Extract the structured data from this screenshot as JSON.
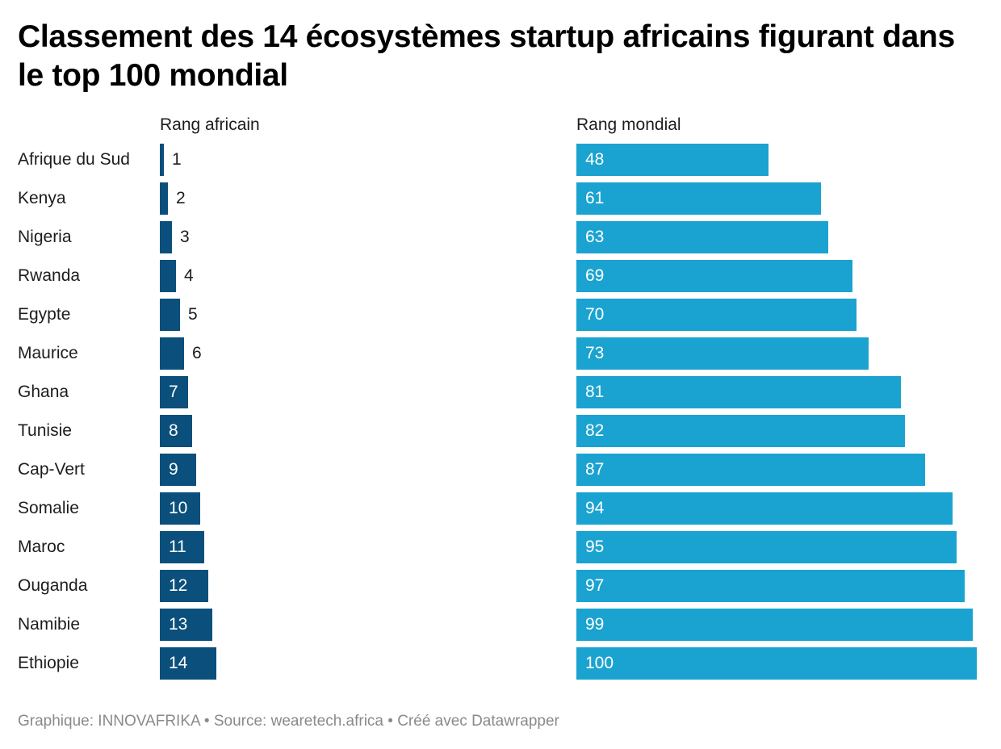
{
  "title": "Classement des 14 écosystèmes startup africains figurant dans le top 100 mondial",
  "columns": {
    "african": "Rang africain",
    "world": "Rang mondial"
  },
  "footer": {
    "text": "Graphique: INNOVAFRIKA • Source: wearetech.africa • Créé avec Datawrapper"
  },
  "colors": {
    "african_bar": "#0b4f7c",
    "world_bar": "#1aa3d0"
  },
  "chart_data": {
    "type": "bar",
    "orientation": "horizontal",
    "title": "Classement des 14 écosystèmes startup africains figurant dans le top 100 mondial",
    "categories": [
      "Afrique du Sud",
      "Kenya",
      "Nigeria",
      "Rwanda",
      "Egypte",
      "Maurice",
      "Ghana",
      "Tunisie",
      "Cap-Vert",
      "Somalie",
      "Maroc",
      "Ouganda",
      "Namibie",
      "Ethiopie"
    ],
    "series": [
      {
        "name": "Rang africain",
        "values": [
          1,
          2,
          3,
          4,
          5,
          6,
          7,
          8,
          9,
          10,
          11,
          12,
          13,
          14
        ]
      },
      {
        "name": "Rang mondial",
        "values": [
          48,
          61,
          63,
          69,
          70,
          73,
          81,
          82,
          87,
          94,
          95,
          97,
          99,
          100
        ]
      }
    ],
    "grid": false,
    "legend": "none"
  }
}
